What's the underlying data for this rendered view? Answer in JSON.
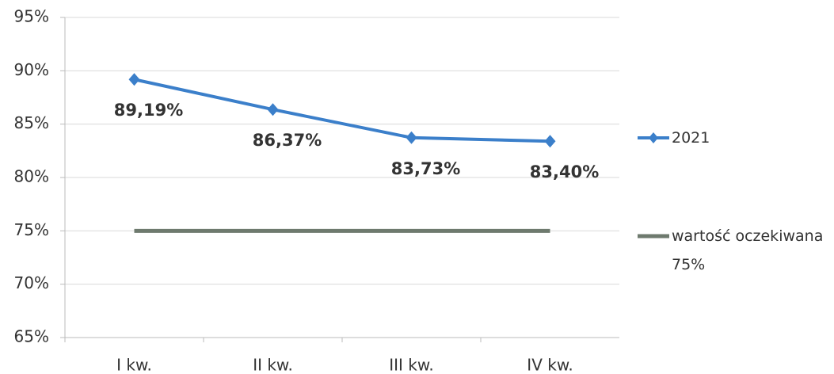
{
  "chart_data": {
    "type": "line",
    "categories": [
      "I kw.",
      "II kw.",
      "III kw.",
      "IV kw."
    ],
    "series": [
      {
        "name": "2021",
        "color": "#3b7fca",
        "values": [
          89.19,
          86.37,
          83.73,
          83.4
        ],
        "value_labels": [
          "89,19%",
          "86,37%",
          "83,73%",
          "83,40%"
        ],
        "marker": "diamond"
      },
      {
        "name": "wartość oczekiwana 75%",
        "color": "#6e7a6e",
        "values": [
          75,
          75,
          75,
          75
        ]
      }
    ],
    "ylim": [
      65,
      95
    ],
    "yticks": [
      {
        "value": 65,
        "label": "65%"
      },
      {
        "value": 70,
        "label": "70%"
      },
      {
        "value": 75,
        "label": "75%"
      },
      {
        "value": 80,
        "label": "80%"
      },
      {
        "value": 85,
        "label": "85%"
      },
      {
        "value": 90,
        "label": "90%"
      },
      {
        "value": 95,
        "label": "95%"
      }
    ],
    "grid": true,
    "legend": "right"
  }
}
